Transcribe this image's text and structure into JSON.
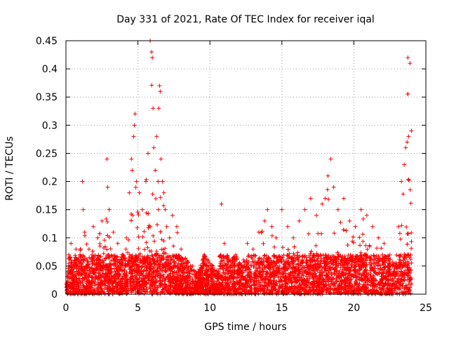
{
  "chart_data": {
    "type": "scatter",
    "title": "Day 331 of 2021, Rate Of TEC Index for receiver iqal",
    "xlabel": "GPS time / hours",
    "ylabel": "ROTI / TECUs",
    "xlim": [
      0,
      25
    ],
    "ylim": [
      0,
      0.45
    ],
    "xticks": [
      0,
      5,
      10,
      15,
      20,
      25
    ],
    "xtick_labels": [
      "0",
      "5",
      "10",
      "15",
      "20",
      "25"
    ],
    "yticks": [
      0,
      0.05,
      0.1,
      0.15,
      0.2,
      0.25,
      0.3,
      0.35,
      0.4,
      0.45
    ],
    "ytick_labels": [
      "0",
      "0.05",
      "0.1",
      "0.15",
      "0.2",
      "0.25",
      "0.3",
      "0.35",
      "0.4",
      "0.45"
    ],
    "grid": true,
    "marker": "+",
    "color": "#ff0000",
    "series": [
      {
        "name": "ROTI",
        "x": [
          0.05,
          0.2,
          0.35,
          0.5,
          0.7,
          0.9,
          1.15,
          1.2,
          1.3,
          1.6,
          1.9,
          2.2,
          2.5,
          2.85,
          2.9,
          3.0,
          3.3,
          3.6,
          3.9,
          4.2,
          4.4,
          4.55,
          4.6,
          4.7,
          4.75,
          4.8,
          4.9,
          5.1,
          5.3,
          5.55,
          5.7,
          5.85,
          5.95,
          6.0,
          6.05,
          6.1,
          6.2,
          6.3,
          6.4,
          6.45,
          6.5,
          6.55,
          6.6,
          6.7,
          6.8,
          6.9,
          7.0,
          7.2,
          7.4,
          7.7,
          8.0,
          8.4,
          8.8,
          9.2,
          9.6,
          9.9,
          10.2,
          10.6,
          10.8,
          11.0,
          11.4,
          11.8,
          12.2,
          12.6,
          13.0,
          13.4,
          13.8,
          14.0,
          14.3,
          14.6,
          15.0,
          15.4,
          15.8,
          16.2,
          16.6,
          17.0,
          17.4,
          17.8,
          18.0,
          18.2,
          18.4,
          18.6,
          18.9,
          19.3,
          19.7,
          20.1,
          20.5,
          20.9,
          21.3,
          21.7,
          22.1,
          22.5,
          22.9,
          23.1,
          23.3,
          23.5,
          23.6,
          23.7,
          23.75,
          23.8,
          23.9,
          24.0
        ],
        "y": [
          0.02,
          0.07,
          0.09,
          0.05,
          0.08,
          0.06,
          0.2,
          0.15,
          0.11,
          0.08,
          0.12,
          0.1,
          0.13,
          0.24,
          0.19,
          0.15,
          0.11,
          0.09,
          0.07,
          0.1,
          0.18,
          0.24,
          0.22,
          0.28,
          0.3,
          0.32,
          0.2,
          0.18,
          0.15,
          0.2,
          0.25,
          0.45,
          0.43,
          0.42,
          0.33,
          0.26,
          0.22,
          0.28,
          0.2,
          0.33,
          0.37,
          0.36,
          0.24,
          0.2,
          0.18,
          0.15,
          0.12,
          0.1,
          0.14,
          0.12,
          0.08,
          0.06,
          0.05,
          0.04,
          0.07,
          0.06,
          0.05,
          0.04,
          0.16,
          0.09,
          0.06,
          0.07,
          0.05,
          0.09,
          0.08,
          0.11,
          0.13,
          0.15,
          0.12,
          0.1,
          0.15,
          0.12,
          0.1,
          0.13,
          0.15,
          0.17,
          0.14,
          0.16,
          0.17,
          0.21,
          0.24,
          0.19,
          0.15,
          0.17,
          0.13,
          0.12,
          0.15,
          0.14,
          0.12,
          0.1,
          0.09,
          0.07,
          0.05,
          0.12,
          0.2,
          0.23,
          0.26,
          0.27,
          0.42,
          0.28,
          0.41,
          0.29
        ]
      }
    ]
  }
}
